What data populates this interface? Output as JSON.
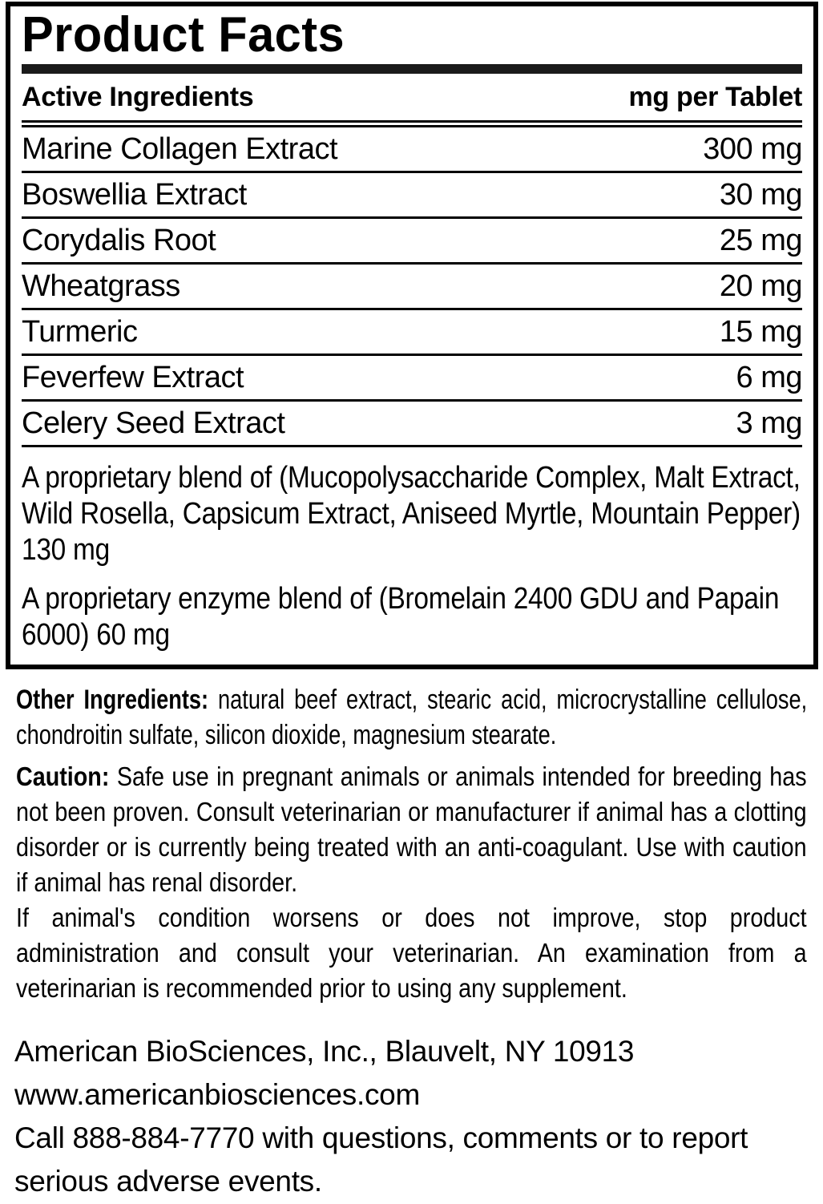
{
  "colors": {
    "text": "#000000",
    "background": "#ffffff",
    "title_bar": "#1b1b1b"
  },
  "panel": {
    "title": "Product Facts",
    "header": {
      "col1": "Active Ingredients",
      "col2": "mg per Tablet"
    },
    "rows": [
      {
        "name": "Marine Collagen Extract",
        "amount": "300 mg"
      },
      {
        "name": "Boswellia Extract",
        "amount": "30 mg"
      },
      {
        "name": "Corydalis Root",
        "amount": "25 mg"
      },
      {
        "name": "Wheatgrass",
        "amount": "20 mg"
      },
      {
        "name": "Turmeric",
        "amount": "15 mg"
      },
      {
        "name": "Feverfew Extract",
        "amount": "6 mg"
      },
      {
        "name": "Celery Seed Extract",
        "amount": "3 mg"
      }
    ],
    "blend_1": "A proprietary blend of (Mucopolysaccharide Complex, Malt Extract, Wild Rosella, Capsicum Extract, Aniseed Myrtle, Mountain Pepper) 130 mg",
    "blend_2": "A proprietary enzyme blend of (Bromelain 2400 GDU and Papain 6000) 60 mg"
  },
  "other_ingredients": {
    "label": "Other Ingredients:",
    "text": "natural beef extract, stearic acid, microcrystalline cellulose, chondroitin sulfate, silicon dioxide, magnesium stearate."
  },
  "caution": {
    "label": "Caution:",
    "text_1": "Safe use in pregnant animals or animals intended for breeding has not been proven. Consult veterinarian or manufacturer if animal has a clotting disorder or is currently being treated with an anti-coagulant. Use with caution if animal has renal disorder.",
    "text_2": "If animal's condition worsens or does not improve, stop product administration and consult your veterinarian. An examination from a veterinarian is recommended prior to using any supplement."
  },
  "footer": {
    "company": "American BioSciences, Inc., Blauvelt, NY 10913",
    "website": "www.americanbiosciences.com",
    "contact": "Call 888-884-7770 with questions, comments or to report serious adverse events."
  }
}
